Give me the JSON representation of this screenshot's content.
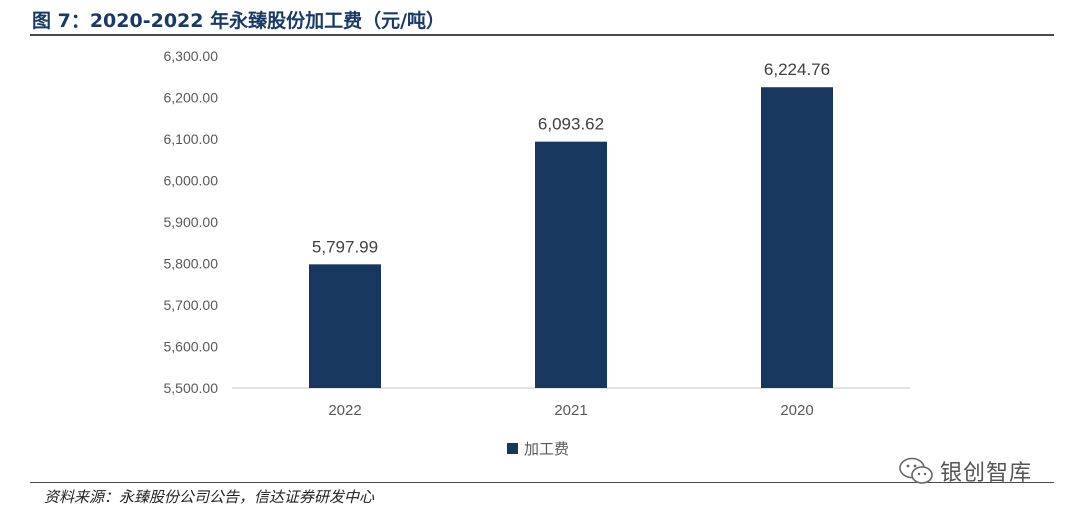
{
  "title": "图 7：2020-2022 年永臻股份加工费（元/吨）",
  "source": "资料来源：永臻股份公司公告，信达证券研发中心",
  "watermark": "银创智库",
  "colors": {
    "bar": "#17375e",
    "axis": "#d9d9d9",
    "text": "#595959",
    "title": "#1a3a66"
  },
  "chart_data": {
    "type": "bar",
    "title": "",
    "xlabel": "",
    "ylabel": "",
    "categories": [
      "2022",
      "2021",
      "2020"
    ],
    "series": [
      {
        "name": "加工费",
        "values": [
          5797.99,
          6093.62,
          6224.76
        ]
      }
    ],
    "data_labels": [
      "5,797.99",
      "6,093.62",
      "6,224.76"
    ],
    "ylim": [
      5500,
      6300
    ],
    "yticks": [
      5500,
      5600,
      5700,
      5800,
      5900,
      6000,
      6100,
      6200,
      6300
    ],
    "ytick_labels": [
      "5,500.00",
      "5,600.00",
      "5,700.00",
      "5,800.00",
      "5,900.00",
      "6,000.00",
      "6,100.00",
      "6,200.00",
      "6,300.00"
    ],
    "grid": false,
    "legend": "bottom-center"
  }
}
